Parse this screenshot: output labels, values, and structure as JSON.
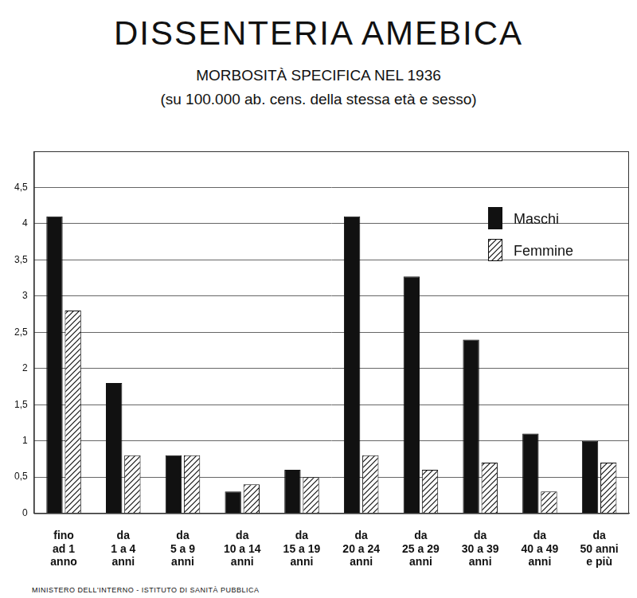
{
  "chart_data": {
    "type": "bar",
    "title": "DISSENTERIA AMEBICA",
    "subtitle": [
      "MORBOSITÀ SPECIFICA NEL 1936",
      "(su 100.000 ab. cens. della stessa età e sesso)"
    ],
    "annotations": [
      "MINISTERO DELL'INTERNO - ISTITUTO DI SANITÀ PUBBLICA"
    ],
    "categories": [
      [
        "fino",
        "ad 1",
        "anno"
      ],
      [
        "da",
        "1 a 4",
        "anni"
      ],
      [
        "da",
        "5 a 9",
        "anni"
      ],
      [
        "da",
        "10 a 14",
        "anni"
      ],
      [
        "da",
        "15 a 19",
        "anni"
      ],
      [
        "da",
        "20 a 24",
        "anni"
      ],
      [
        "da",
        "25 a 29",
        "anni"
      ],
      [
        "da",
        "30 a 39",
        "anni"
      ],
      [
        "da",
        "40 a 49",
        "anni"
      ],
      [
        "da",
        "50 anni",
        "e più"
      ]
    ],
    "series": [
      {
        "name": "Maschi",
        "color": "#111111",
        "marker": "solid",
        "values": [
          4.1,
          1.8,
          0.8,
          0.3,
          0.6,
          4.1,
          3.27,
          2.4,
          1.1,
          1.0
        ]
      },
      {
        "name": "Femmine",
        "color": "#111111",
        "marker": "hatch",
        "values": [
          2.8,
          0.8,
          0.8,
          0.4,
          0.5,
          0.8,
          0.6,
          0.7,
          0.3,
          0.7
        ]
      }
    ],
    "ylim": [
      0,
      5
    ],
    "yticks": [
      0,
      {
        "value": 0.5,
        "label": "0,5"
      },
      1,
      {
        "value": 1.5,
        "label": "1,5"
      },
      2,
      {
        "value": 2.5,
        "label": "2,5"
      },
      3,
      {
        "value": 3.5,
        "label": "3,5"
      },
      4,
      {
        "value": 4.5,
        "label": "4,5"
      }
    ],
    "grid": true,
    "legend": "upper right"
  }
}
